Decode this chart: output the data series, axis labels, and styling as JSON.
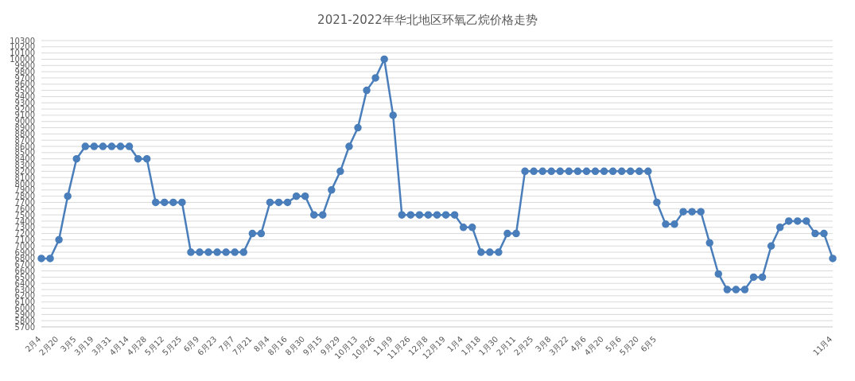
{
  "chart_data": {
    "type": "line",
    "title": "2021-2022年华北地区环氧乙烷价格走势",
    "categories": [
      "2月4",
      null,
      "2月20",
      null,
      "3月5",
      null,
      "3月19",
      null,
      "3月31",
      null,
      "4月14",
      null,
      "4月28",
      null,
      "5月12",
      null,
      "5月25",
      null,
      "6月9",
      null,
      "6月23",
      null,
      "7月7",
      null,
      "7月21",
      null,
      "8月4",
      null,
      "8月16",
      null,
      "8月30",
      null,
      "9月15",
      null,
      "9月29",
      null,
      "10月13",
      null,
      "10月26",
      null,
      "11月9",
      null,
      "11月26",
      null,
      "12月8",
      null,
      "12月19",
      null,
      "1月4",
      null,
      "1月18",
      null,
      "1月30",
      null,
      "2月11",
      null,
      "2月25",
      null,
      "3月8",
      null,
      "3月22",
      null,
      "4月6",
      null,
      "4月20",
      null,
      "5月6",
      null,
      "5月20",
      null,
      "6月5",
      null,
      null,
      null,
      null,
      null,
      null,
      null,
      null,
      null,
      null,
      null,
      null,
      null,
      null,
      null,
      null,
      null,
      null,
      null,
      "11月4"
    ],
    "series": [
      {
        "color": "#4a7ebb",
        "values": [
          6800,
          6800,
          7100,
          7800,
          8400,
          8600,
          8600,
          8600,
          8600,
          8600,
          8600,
          8400,
          8400,
          7700,
          7700,
          7700,
          7700,
          6900,
          6900,
          6900,
          6900,
          6900,
          6900,
          6900,
          7200,
          7200,
          7700,
          7700,
          7700,
          7800,
          7800,
          7500,
          7500,
          7900,
          8200,
          8600,
          8900,
          9500,
          9700,
          10000,
          9100,
          7500,
          7500,
          7500,
          7500,
          7500,
          7500,
          7500,
          7300,
          7300,
          6900,
          6900,
          6900,
          7200,
          7200,
          8200,
          8200,
          8200,
          8200,
          8200,
          8200,
          8200,
          8200,
          8200,
          8200,
          8200,
          8200,
          8200,
          8200,
          8200,
          7700,
          7350,
          7350,
          7550,
          7550,
          7550,
          7050,
          6550,
          6300,
          6300,
          6300,
          6500,
          6500,
          7000,
          7300,
          7400,
          7400,
          7400,
          7200,
          7200,
          6800
        ]
      }
    ],
    "ylim": [
      5700,
      10300
    ],
    "yticks": [
      5700,
      5800,
      5900,
      6000,
      6100,
      6200,
      6300,
      6400,
      6500,
      6600,
      6700,
      6800,
      6900,
      7000,
      7100,
      7200,
      7300,
      7400,
      7500,
      7600,
      7700,
      7800,
      7900,
      8000,
      8100,
      8200,
      8300,
      8400,
      8500,
      8600,
      8700,
      8800,
      8900,
      9000,
      9100,
      9200,
      9300,
      9400,
      9500,
      9600,
      9700,
      9800,
      9900,
      10000,
      10100,
      10200,
      10300
    ],
    "grid": "y",
    "marker": "circle",
    "line_style": "solid",
    "legend": false
  }
}
